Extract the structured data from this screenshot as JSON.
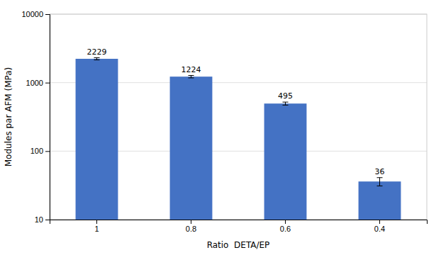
{
  "chart_data": {
    "type": "bar",
    "categories": [
      "1",
      "0.8",
      "0.6",
      "0.4"
    ],
    "values": [
      2229,
      1224,
      495,
      36
    ],
    "errors": [
      80,
      50,
      25,
      5
    ],
    "color": "#4472C4",
    "xlabel": "Ratio  DETA/EP",
    "ylabel": "Modules par AFM (MPa)",
    "log": "y",
    "ylim": [
      10,
      10000
    ],
    "yticks": [
      10,
      100,
      1000,
      10000
    ],
    "grid": true,
    "data_labels": true
  }
}
